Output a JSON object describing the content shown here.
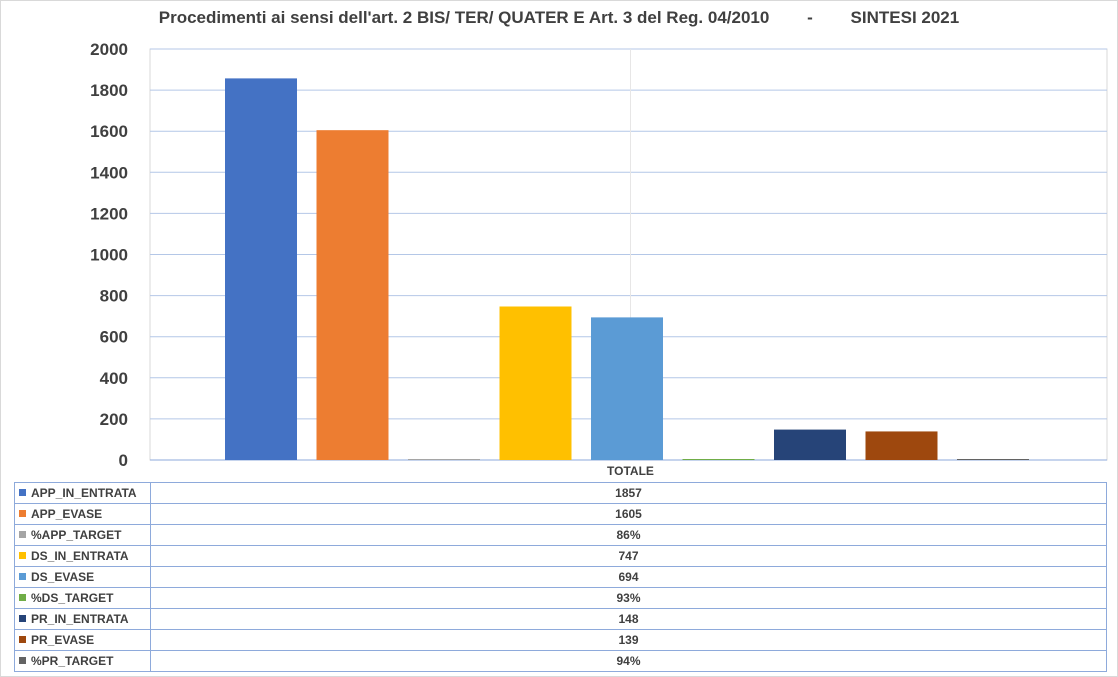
{
  "chart_data": {
    "type": "bar",
    "title": "Procedimenti ai sensi dell'art. 2 BIS/ TER/ QUATER E Art. 3 del Reg. 04/2010        -        SINTESI 2021",
    "categories": [
      "TOTALE"
    ],
    "ylim": [
      0,
      2000
    ],
    "yticks": [
      0,
      200,
      400,
      600,
      800,
      1000,
      1200,
      1400,
      1600,
      1800,
      2000
    ],
    "grid": true,
    "legend": "data-table-below",
    "series": [
      {
        "name": "APP_IN_ENTRATA",
        "values": [
          1857
        ],
        "label": "1857",
        "color": "#4472C4"
      },
      {
        "name": "APP_EVASE",
        "values": [
          1605
        ],
        "label": "1605",
        "color": "#ED7D31"
      },
      {
        "name": "%APP_TARGET",
        "values": [
          0.86
        ],
        "label": "86%",
        "color": "#A5A5A5"
      },
      {
        "name": "DS_IN_ENTRATA",
        "values": [
          747
        ],
        "label": "747",
        "color": "#FFC000"
      },
      {
        "name": "DS_EVASE",
        "values": [
          694
        ],
        "label": "694",
        "color": "#5B9BD5"
      },
      {
        "name": "%DS_TARGET",
        "values": [
          0.93
        ],
        "label": "93%",
        "color": "#70AD47"
      },
      {
        "name": "PR_IN_ENTRATA",
        "values": [
          148
        ],
        "label": "148",
        "color": "#264478"
      },
      {
        "name": "PR_EVASE",
        "values": [
          139
        ],
        "label": "139",
        "color": "#9E480E"
      },
      {
        "name": "%PR_TARGET",
        "values": [
          0.94
        ],
        "label": "94%",
        "color": "#636363"
      }
    ]
  }
}
